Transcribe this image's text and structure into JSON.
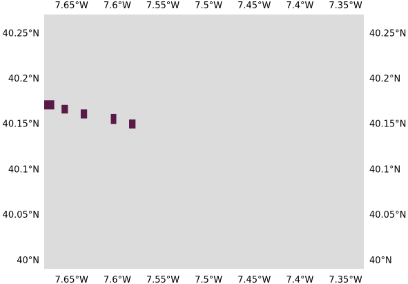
{
  "map": {
    "extent": {
      "lon_min": -7.68,
      "lon_max": -7.33,
      "lat_min": 39.99,
      "lat_max": 40.27
    },
    "background_color": "#dcdcdc",
    "feature_color": "#5a1a48",
    "lon_ticks": [
      {
        "value": -7.65,
        "label": "7.65°W"
      },
      {
        "value": -7.6,
        "label": "7.6°W"
      },
      {
        "value": -7.55,
        "label": "7.55°W"
      },
      {
        "value": -7.5,
        "label": "7.5°W"
      },
      {
        "value": -7.45,
        "label": "7.45°W"
      },
      {
        "value": -7.4,
        "label": "7.4°W"
      },
      {
        "value": -7.35,
        "label": "7.35°W"
      }
    ],
    "lat_ticks": [
      {
        "value": 40.25,
        "label": "40.25°N"
      },
      {
        "value": 40.2,
        "label": "40.2°N"
      },
      {
        "value": 40.15,
        "label": "40.15°N"
      },
      {
        "value": 40.1,
        "label": "40.1°N"
      },
      {
        "value": 40.05,
        "label": "40.05°N"
      },
      {
        "value": 40.0,
        "label": "40°N"
      }
    ],
    "features": [
      {
        "lon0": -7.68,
        "lon1": -7.669,
        "lat0": 40.1655,
        "lat1": 40.1755
      },
      {
        "lon0": -7.661,
        "lon1": -7.654,
        "lat0": 40.161,
        "lat1": 40.1705
      },
      {
        "lon0": -7.64,
        "lon1": -7.633,
        "lat0": 40.1555,
        "lat1": 40.1655
      },
      {
        "lon0": -7.607,
        "lon1": -7.601,
        "lat0": 40.1495,
        "lat1": 40.1605
      },
      {
        "lon0": -7.587,
        "lon1": -7.58,
        "lat0": 40.1445,
        "lat1": 40.1545
      }
    ]
  }
}
